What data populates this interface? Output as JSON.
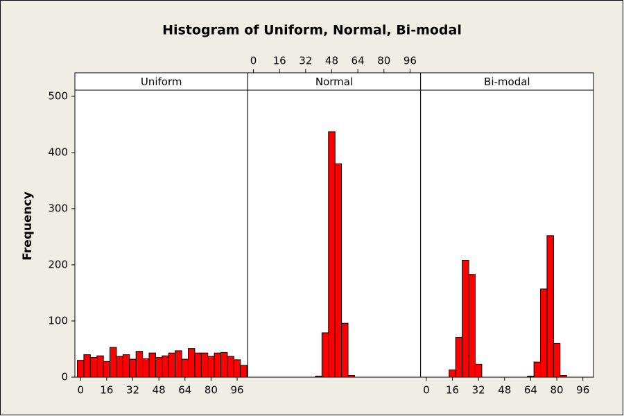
{
  "chart_data": {
    "type": "histogram",
    "title": "Histogram of Uniform, Normal, Bi-modal",
    "ylabel": "Frequency",
    "bins": [
      -2,
      2,
      6,
      10,
      14,
      18,
      22,
      26,
      30,
      34,
      38,
      42,
      46,
      50,
      54,
      58,
      62,
      66,
      70,
      74,
      78,
      82,
      86,
      90,
      94,
      98,
      102
    ],
    "series": [
      {
        "name": "Uniform",
        "color": "#ff0000",
        "values": [
          30,
          40,
          35,
          38,
          28,
          53,
          37,
          40,
          32,
          46,
          33,
          43,
          35,
          38,
          43,
          47,
          32,
          51,
          43,
          43,
          37,
          43,
          44,
          37,
          31,
          21
        ]
      },
      {
        "name": "Normal",
        "color": "#ff0000",
        "values": [
          0,
          0,
          0,
          0,
          0,
          0,
          0,
          0,
          0,
          0,
          2,
          79,
          437,
          380,
          96,
          3,
          0,
          0,
          0,
          0,
          0,
          0,
          0,
          0,
          0,
          0
        ]
      },
      {
        "name": "Bi-modal",
        "color": "#ff0000",
        "values": [
          0,
          0,
          0,
          0,
          13,
          71,
          208,
          183,
          23,
          0,
          0,
          0,
          0,
          0,
          0,
          0,
          2,
          27,
          157,
          252,
          60,
          3,
          0,
          0,
          0,
          0
        ]
      }
    ],
    "xlim": [
      -3.5,
      102.5
    ],
    "xticks": [
      0,
      16,
      32,
      48,
      64,
      80,
      96
    ],
    "ylim": [
      0,
      511
    ],
    "yticks": [
      0,
      100,
      200,
      300,
      400,
      500
    ]
  }
}
